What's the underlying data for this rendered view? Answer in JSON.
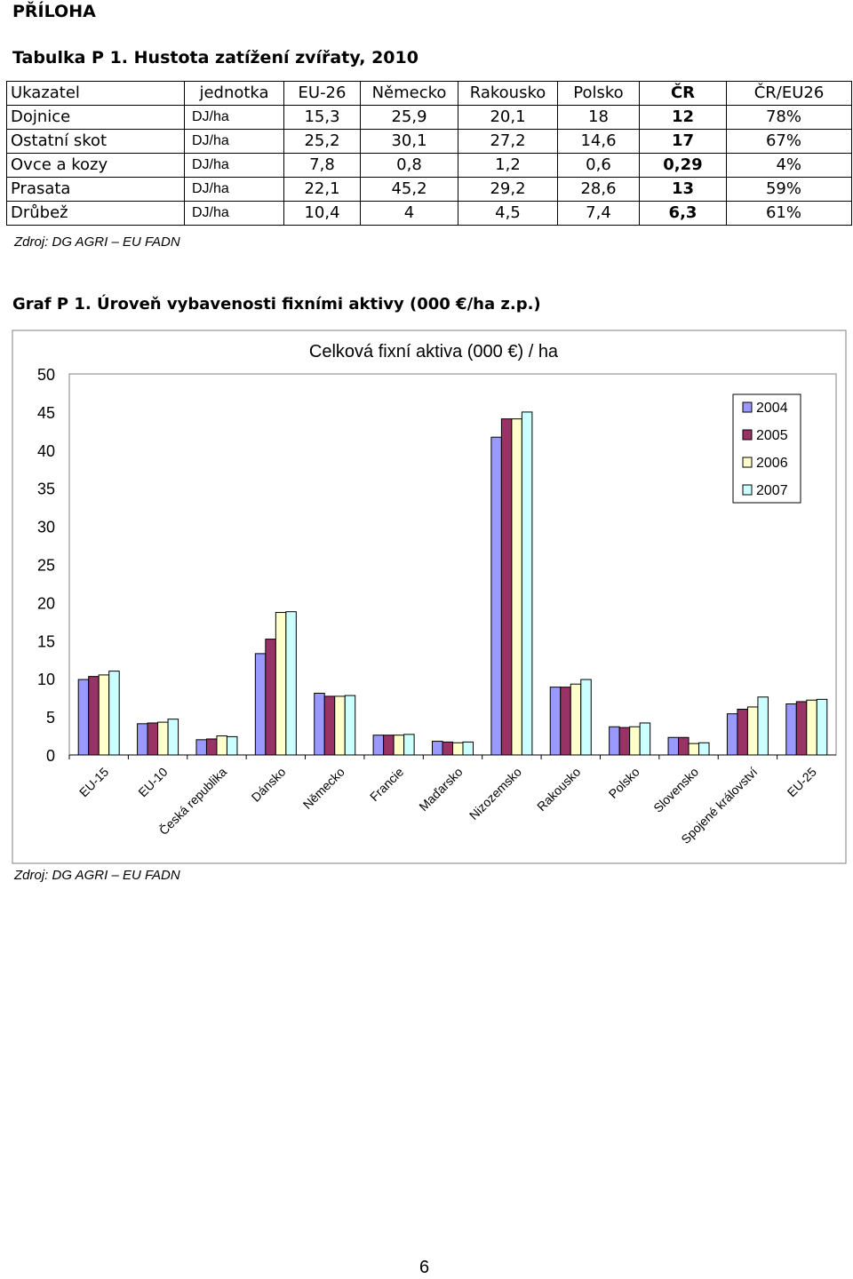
{
  "heading": "PŘÍLOHA",
  "table": {
    "caption": "Tabulka P 1. Hustota zatížení zvířaty, 2010",
    "headers": [
      "Ukazatel",
      "jednotka",
      "EU-26",
      "Německo",
      "Rakousko",
      "Polsko",
      "ČR",
      "ČR/EU26"
    ],
    "rows": [
      [
        "Dojnice",
        "DJ/ha",
        "15,3",
        "25,9",
        "20,1",
        "18",
        "12",
        "78%"
      ],
      [
        "Ostatní skot",
        "DJ/ha",
        "25,2",
        "30,1",
        "27,2",
        "14,6",
        "17",
        "67%"
      ],
      [
        "Ovce a kozy",
        "DJ/ha",
        "7,8",
        "0,8",
        "1,2",
        "0,6",
        "0,29",
        "4%"
      ],
      [
        "Prasata",
        "DJ/ha",
        "22,1",
        "45,2",
        "29,2",
        "28,6",
        "13",
        "59%"
      ],
      [
        "Drůbež",
        "DJ/ha",
        "10,4",
        "4",
        "4,5",
        "7,4",
        "6,3",
        "61%"
      ]
    ],
    "source": "Zdroj: DG AGRI – EU FADN"
  },
  "graph": {
    "caption": "Graf P 1. Úroveň vybavenosti fixními aktivy (000 €/ha z.p.)",
    "source": "Zdroj: DG AGRI – EU FADN"
  },
  "chart_data": {
    "type": "bar",
    "title": "Celková fixní aktiva (000 €) / ha",
    "xlabel": "",
    "ylabel": "",
    "ylim": [
      0,
      50
    ],
    "yticks": [
      0,
      5,
      10,
      15,
      20,
      25,
      30,
      35,
      40,
      45,
      50
    ],
    "grid": false,
    "legend_position": "right",
    "categories": [
      "EU-15",
      "EU-10",
      "Česká republika",
      "Dánsko",
      "Německo",
      "Francie",
      "Maďarsko",
      "Nizozemsko",
      "Rakousko",
      "Polsko",
      "Slovensko",
      "Spojené království",
      "EU-25"
    ],
    "series": [
      {
        "name": "2004",
        "color": "#9999ff",
        "values": [
          9.9,
          4.1,
          2.0,
          13.3,
          8.1,
          2.6,
          1.8,
          41.7,
          8.9,
          3.7,
          2.3,
          5.4,
          6.7
        ]
      },
      {
        "name": "2005",
        "color": "#993366",
        "values": [
          10.3,
          4.2,
          2.1,
          15.2,
          7.7,
          2.6,
          1.7,
          44.1,
          8.9,
          3.6,
          2.3,
          6.0,
          7.0
        ]
      },
      {
        "name": "2006",
        "color": "#ffffcc",
        "values": [
          10.5,
          4.3,
          2.5,
          18.7,
          7.7,
          2.6,
          1.6,
          44.1,
          9.3,
          3.7,
          1.5,
          6.3,
          7.2
        ]
      },
      {
        "name": "2007",
        "color": "#ccffff",
        "values": [
          11.0,
          4.7,
          2.4,
          18.8,
          7.8,
          2.7,
          1.7,
          45.0,
          9.9,
          4.2,
          1.6,
          7.6,
          7.3
        ]
      }
    ]
  },
  "page_number": "6"
}
